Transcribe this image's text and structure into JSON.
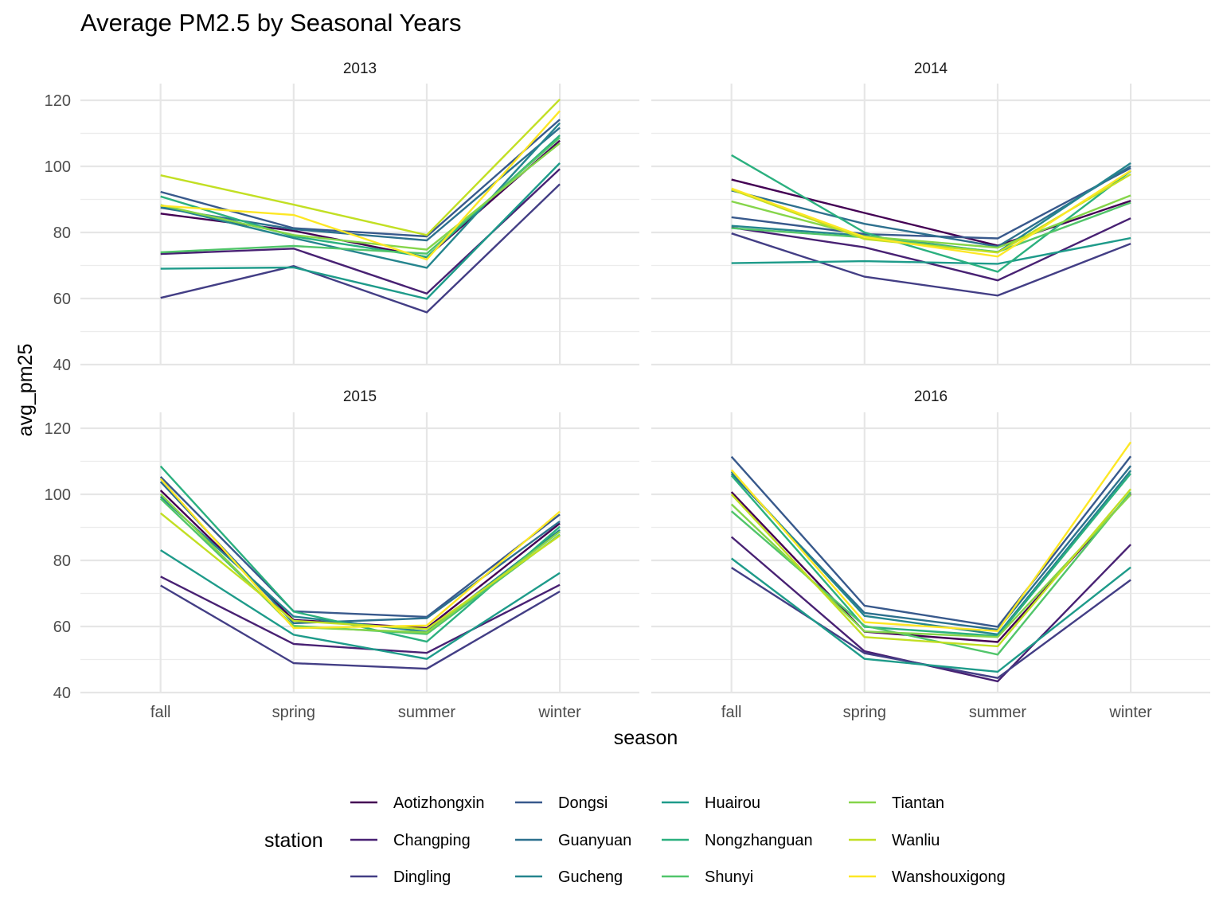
{
  "chart_data": {
    "type": "line",
    "title": "Average PM2.5 by Seasonal Years",
    "xlabel": "season",
    "ylabel": "avg_pm25",
    "categories": [
      "fall",
      "spring",
      "summer",
      "winter"
    ],
    "ylim": [
      40,
      120
    ],
    "yticks": [
      40,
      60,
      80,
      100,
      120
    ],
    "grid": true,
    "legend": {
      "title": "station",
      "position": "bottom",
      "entries": [
        {
          "name": "Aotizhongxin",
          "color": "#440154"
        },
        {
          "name": "Changping",
          "color": "#482173"
        },
        {
          "name": "Dingling",
          "color": "#433E85"
        },
        {
          "name": "Dongsi",
          "color": "#38598C"
        },
        {
          "name": "Guanyuan",
          "color": "#2D708E"
        },
        {
          "name": "Gucheng",
          "color": "#25858E"
        },
        {
          "name": "Huairou",
          "color": "#1E9B8A"
        },
        {
          "name": "Nongzhanguan",
          "color": "#2BB07F"
        },
        {
          "name": "Shunyi",
          "color": "#51C56A"
        },
        {
          "name": "Tiantan",
          "color": "#85D54A"
        },
        {
          "name": "Wanliu",
          "color": "#C2DF23"
        },
        {
          "name": "Wanshouxigong",
          "color": "#FDE725"
        }
      ]
    },
    "panels": [
      {
        "label": "2013",
        "series": [
          {
            "name": "Aotizhongxin",
            "values": [
              85.7,
              80.5,
              72.5,
              107.8
            ]
          },
          {
            "name": "Changping",
            "values": [
              73.5,
              75.1,
              61.5,
              99.2
            ]
          },
          {
            "name": "Dingling",
            "values": [
              60.2,
              69.8,
              55.8,
              94.6
            ]
          },
          {
            "name": "Dongsi",
            "values": [
              92.3,
              81.3,
              78.8,
              114.2
            ]
          },
          {
            "name": "Guanyuan",
            "values": [
              87.5,
              81.0,
              77.6,
              111.7
            ]
          },
          {
            "name": "Gucheng",
            "values": [
              88.0,
              78.3,
              69.3,
              113.1
            ]
          },
          {
            "name": "Huairou",
            "values": [
              69.0,
              69.4,
              59.9,
              101.0
            ]
          },
          {
            "name": "Nongzhanguan",
            "values": [
              90.9,
              78.8,
              72.6,
              109.4
            ]
          },
          {
            "name": "Shunyi",
            "values": [
              74.0,
              75.9,
              73.6,
              108.7
            ]
          },
          {
            "name": "Tiantan",
            "values": [
              88.3,
              79.2,
              74.8,
              107.0
            ]
          },
          {
            "name": "Wanliu",
            "values": [
              97.3,
              88.4,
              79.2,
              120.3
            ]
          },
          {
            "name": "Wanshouxigong",
            "values": [
              88.1,
              85.3,
              71.8,
              116.8
            ]
          }
        ]
      },
      {
        "label": "2014",
        "series": [
          {
            "name": "Aotizhongxin",
            "values": [
              96.0,
              85.9,
              76.0,
              89.6
            ]
          },
          {
            "name": "Changping",
            "values": [
              81.5,
              75.5,
              65.5,
              84.3
            ]
          },
          {
            "name": "Dingling",
            "values": [
              79.7,
              66.6,
              60.9,
              76.6
            ]
          },
          {
            "name": "Dongsi",
            "values": [
              84.6,
              79.5,
              78.2,
              99.5
            ]
          },
          {
            "name": "Guanyuan",
            "values": [
              92.7,
              82.6,
              75.7,
              100.1
            ]
          },
          {
            "name": "Gucheng",
            "values": [
              82.0,
              79.0,
              74.0,
              101.0
            ]
          },
          {
            "name": "Huairou",
            "values": [
              70.7,
              71.3,
              70.5,
              78.3
            ]
          },
          {
            "name": "Nongzhanguan",
            "values": [
              103.4,
              80.0,
              68.1,
              98.6
            ]
          },
          {
            "name": "Shunyi",
            "values": [
              81.3,
              78.5,
              74.1,
              89.0
            ]
          },
          {
            "name": "Tiantan",
            "values": [
              89.4,
              78.8,
              75.4,
              91.2
            ]
          },
          {
            "name": "Wanliu",
            "values": [
              93.0,
              78.0,
              73.9,
              97.6
            ]
          },
          {
            "name": "Wanshouxigong",
            "values": [
              93.3,
              78.6,
              72.7,
              98.7
            ]
          }
        ]
      },
      {
        "label": "2015",
        "series": [
          {
            "name": "Aotizhongxin",
            "values": [
              101.2,
              62.0,
              59.5,
              91.2
            ]
          },
          {
            "name": "Changping",
            "values": [
              75.1,
              54.7,
              52.0,
              72.6
            ]
          },
          {
            "name": "Dingling",
            "values": [
              72.4,
              48.9,
              47.2,
              70.6
            ]
          },
          {
            "name": "Dongsi",
            "values": [
              105.3,
              64.6,
              62.9,
              93.9
            ]
          },
          {
            "name": "Guanyuan",
            "values": [
              103.8,
              61.0,
              62.5,
              91.8
            ]
          },
          {
            "name": "Gucheng",
            "values": [
              99.3,
              63.0,
              58.4,
              89.2
            ]
          },
          {
            "name": "Huairou",
            "values": [
              83.1,
              57.5,
              50.2,
              76.2
            ]
          },
          {
            "name": "Nongzhanguan",
            "values": [
              108.5,
              64.5,
              55.4,
              90.2
            ]
          },
          {
            "name": "Shunyi",
            "values": [
              98.7,
              60.2,
              57.7,
              87.8
            ]
          },
          {
            "name": "Tiantan",
            "values": [
              100.1,
              59.8,
              58.2,
              88.7
            ]
          },
          {
            "name": "Wanliu",
            "values": [
              94.3,
              61.7,
              59.2,
              87.5
            ]
          },
          {
            "name": "Wanshouxigong",
            "values": [
              104.7,
              59.5,
              60.3,
              94.8
            ]
          }
        ]
      },
      {
        "label": "2016",
        "series": [
          {
            "name": "Aotizhongxin",
            "values": [
              100.7,
              58.4,
              55.3,
              100.2
            ]
          },
          {
            "name": "Changping",
            "values": [
              87.1,
              52.5,
              43.4,
              84.8
            ]
          },
          {
            "name": "Dingling",
            "values": [
              77.8,
              51.9,
              44.4,
              74.1
            ]
          },
          {
            "name": "Dongsi",
            "values": [
              111.4,
              66.3,
              59.9,
              111.5
            ]
          },
          {
            "name": "Guanyuan",
            "values": [
              106.3,
              64.1,
              59.0,
              108.6
            ]
          },
          {
            "name": "Gucheng",
            "values": [
              106.9,
              63.2,
              57.6,
              107.2
            ]
          },
          {
            "name": "Huairou",
            "values": [
              80.6,
              50.2,
              46.3,
              77.9
            ]
          },
          {
            "name": "Nongzhanguan",
            "values": [
              105.7,
              59.9,
              57.1,
              106.3
            ]
          },
          {
            "name": "Shunyi",
            "values": [
              94.9,
              60.2,
              51.5,
              100.7
            ]
          },
          {
            "name": "Tiantan",
            "values": [
              97.0,
              58.5,
              56.8,
              99.9
            ]
          },
          {
            "name": "Wanliu",
            "values": [
              100.0,
              56.8,
              54.0,
              101.6
            ]
          },
          {
            "name": "Wanshouxigong",
            "values": [
              107.4,
              61.3,
              58.6,
              115.8
            ]
          }
        ]
      }
    ]
  }
}
